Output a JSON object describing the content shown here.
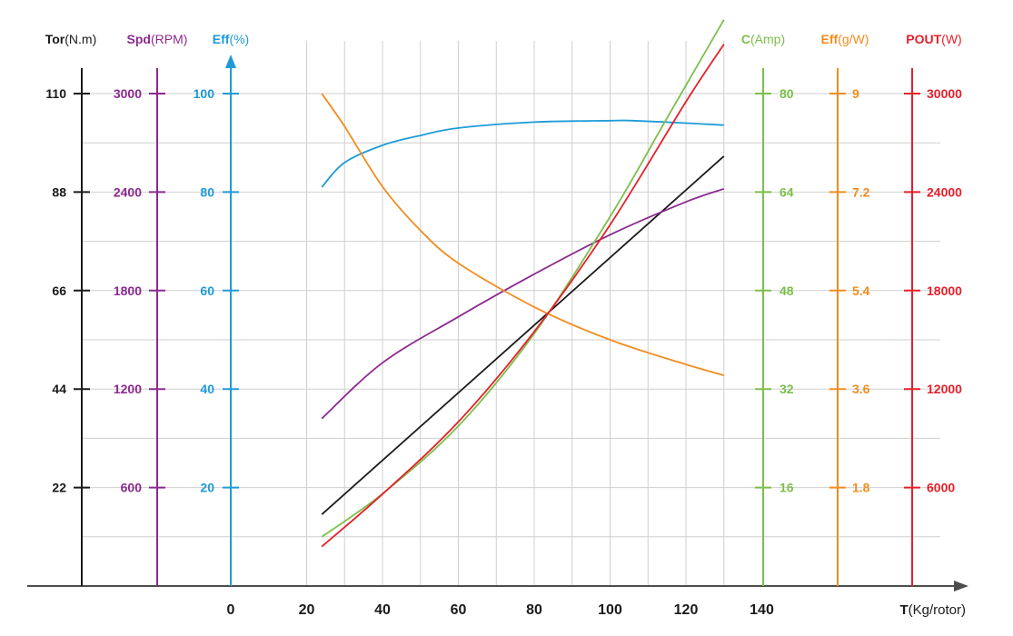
{
  "colors": {
    "tor": "#1a1a1a",
    "spd": "#8b2a8f",
    "eff_pct": "#1e9bd7",
    "current": "#7cbf4a",
    "eff_gw": "#f28c1f",
    "pout": "#e5202a",
    "grid": "#cfcfcf",
    "axis": "#4d4d4d"
  },
  "chart_data": {
    "type": "line",
    "x_axis": {
      "label_bold": "T",
      "label_unit": "(Kg/rotor)",
      "range": [
        -20,
        150
      ],
      "ticks": [
        0,
        20,
        40,
        60,
        80,
        100,
        120,
        140
      ]
    },
    "y_axes": [
      {
        "key": "tor",
        "label_bold": "Tor",
        "label_unit": "(N.m)",
        "range": [
          0,
          110
        ],
        "ticks": [
          22,
          44,
          66,
          88,
          110
        ]
      },
      {
        "key": "spd",
        "label_bold": "Spd",
        "label_unit": "(RPM)",
        "range": [
          0,
          3000
        ],
        "ticks": [
          600,
          1200,
          1800,
          2400,
          3000
        ]
      },
      {
        "key": "eff_pct",
        "label_bold": "Eff",
        "label_unit": "(%)",
        "range": [
          0,
          100
        ],
        "ticks": [
          20,
          40,
          60,
          80,
          100
        ]
      },
      {
        "key": "current",
        "label_bold": "C",
        "label_unit": "(Amp)",
        "range": [
          0,
          80
        ],
        "ticks": [
          16,
          32,
          48,
          64,
          80
        ]
      },
      {
        "key": "eff_gw",
        "label_bold": "Eff",
        "label_unit": "(g/W)",
        "range": [
          0,
          9
        ],
        "ticks": [
          1.8,
          3.6,
          5.4,
          7.2,
          9
        ]
      },
      {
        "key": "pout",
        "label_bold": "POUT",
        "label_unit": "(W)",
        "range": [
          0,
          30000
        ],
        "ticks": [
          6000,
          12000,
          18000,
          24000,
          30000
        ]
      }
    ],
    "series": [
      {
        "axis": "tor",
        "points": [
          [
            24,
            16
          ],
          [
            130,
            96
          ]
        ]
      },
      {
        "axis": "spd",
        "points": [
          [
            24,
            1020
          ],
          [
            40,
            1360
          ],
          [
            60,
            1640
          ],
          [
            80,
            1900
          ],
          [
            100,
            2140
          ],
          [
            120,
            2340
          ],
          [
            130,
            2420
          ]
        ]
      },
      {
        "axis": "eff_pct",
        "points": [
          [
            24,
            81
          ],
          [
            30,
            86
          ],
          [
            40,
            89.5
          ],
          [
            50,
            91.5
          ],
          [
            60,
            93
          ],
          [
            80,
            94.2
          ],
          [
            100,
            94.5
          ],
          [
            106,
            94.5
          ],
          [
            120,
            94
          ],
          [
            130,
            93.6
          ]
        ]
      },
      {
        "axis": "current",
        "points": [
          [
            24,
            8
          ],
          [
            40,
            15
          ],
          [
            60,
            26
          ],
          [
            80,
            41
          ],
          [
            100,
            60
          ],
          [
            115,
            76
          ],
          [
            130,
            92
          ]
        ]
      },
      {
        "axis": "eff_gw",
        "points": [
          [
            24,
            9
          ],
          [
            30,
            8.4
          ],
          [
            40,
            7.3
          ],
          [
            50,
            6.5
          ],
          [
            60,
            5.9
          ],
          [
            80,
            5.1
          ],
          [
            100,
            4.5
          ],
          [
            120,
            4.05
          ],
          [
            130,
            3.85
          ]
        ]
      },
      {
        "axis": "pout",
        "points": [
          [
            24,
            2400
          ],
          [
            40,
            5600
          ],
          [
            60,
            10000
          ],
          [
            80,
            15500
          ],
          [
            100,
            22000
          ],
          [
            120,
            29500
          ],
          [
            130,
            33000
          ]
        ]
      }
    ]
  }
}
